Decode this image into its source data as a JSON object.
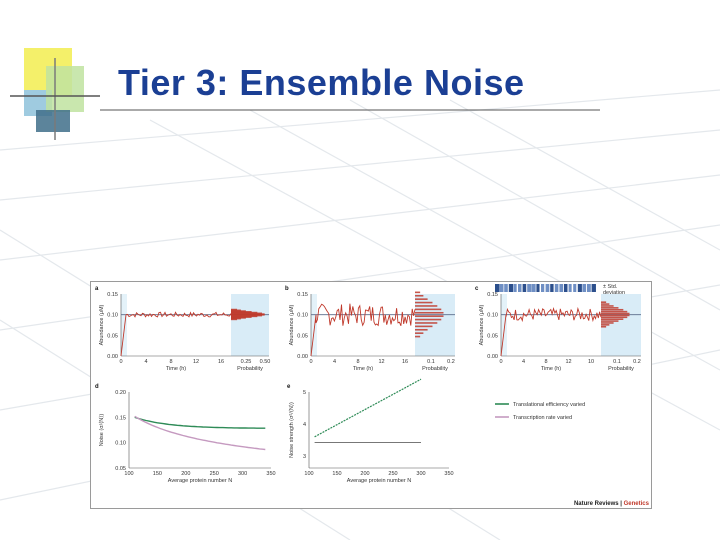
{
  "slide": {
    "title": "Tier 3: Ensemble Noise"
  },
  "figure": {
    "credit_main": "Nature Reviews",
    "credit_sep": " | ",
    "credit_journal": "Genetics",
    "panels": [
      {
        "letter": "a",
        "ylabel": "Abundance (μM)",
        "xlabel": "Time (h)",
        "plabel": "Probability",
        "yticks": [
          "0.00",
          "0.05",
          "0.10",
          "0.15"
        ],
        "xticks": [
          "0",
          "4",
          "8",
          "12",
          "16"
        ],
        "pticks": [
          "0.25",
          "0.50"
        ],
        "noise": 0.004
      },
      {
        "letter": "b",
        "ylabel": "Abundance (μM)",
        "xlabel": "Time (h)",
        "plabel": "Probability",
        "yticks": [
          "0.00",
          "0.05",
          "0.10",
          "0.15"
        ],
        "xticks": [
          "0",
          "4",
          "8",
          "12",
          "16"
        ],
        "pticks": [
          "0.1",
          "0.2"
        ],
        "noise": 0.018
      },
      {
        "letter": "c",
        "ylabel": "Abundance (μM)",
        "xlabel": "Time (h)",
        "plabel": "Probability",
        "yticks": [
          "0.00",
          "0.05",
          "0.10",
          "0.15"
        ],
        "xticks": [
          "0",
          "4",
          "8",
          "12",
          "10"
        ],
        "pticks": [
          "0.1",
          "0.2"
        ],
        "noise": 0.01,
        "annotation": [
          "± Std.",
          "deviation"
        ]
      }
    ],
    "panel_d": {
      "letter": "d",
      "ylabel": "Noise (σ/⟨N⟩)",
      "xlabel": "Average protein number N",
      "yticks": [
        "0.05",
        "0.10",
        "0.15",
        "0.20"
      ],
      "xticks": [
        "100",
        "150",
        "200",
        "250",
        "300",
        "350"
      ]
    },
    "panel_e": {
      "letter": "e",
      "ylabel": "Noise strength (σ²/⟨N⟩)",
      "xlabel": "Average protein number N",
      "yticks": [
        "3",
        "4",
        "5"
      ],
      "xticks": [
        "100",
        "150",
        "200",
        "250",
        "300",
        "350"
      ]
    },
    "legend": [
      {
        "label": "Translational efficiency varied",
        "color": "#2e8b57"
      },
      {
        "label": "Transcription rate varied",
        "color": "#c59ac0"
      }
    ]
  }
}
